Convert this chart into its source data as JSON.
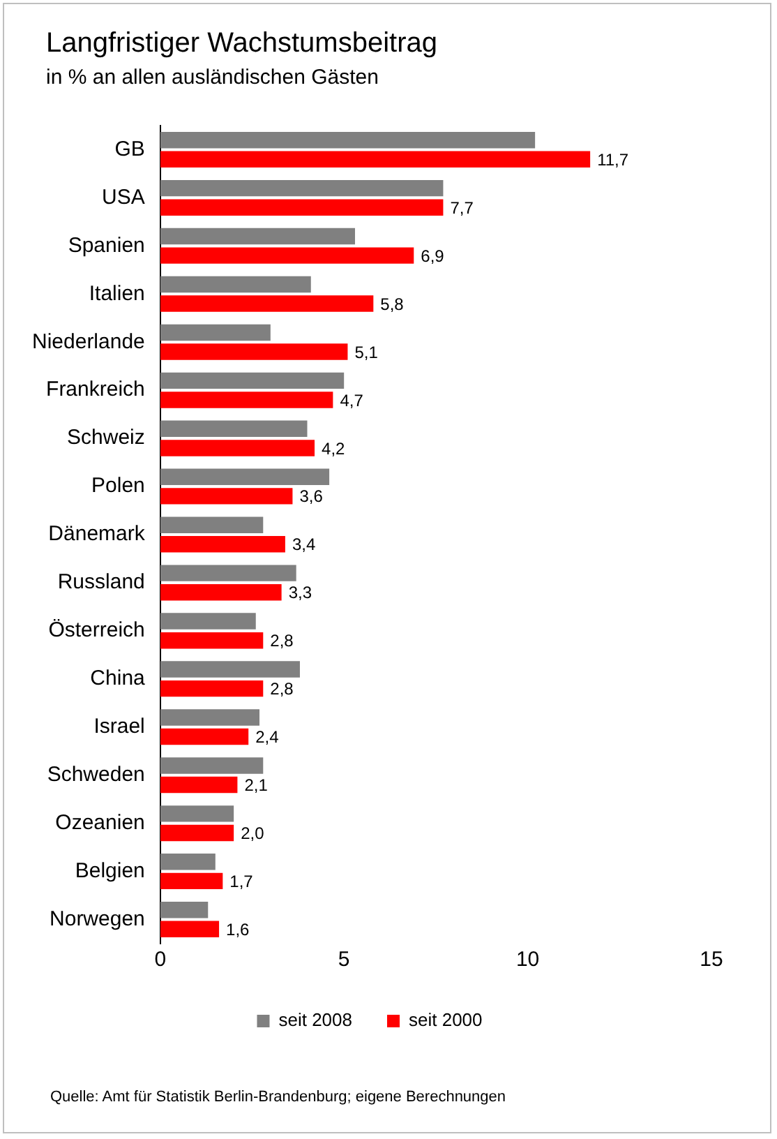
{
  "chart_data": {
    "type": "bar",
    "orientation": "horizontal",
    "title": "Langfristiger Wachstumsbeitrag",
    "subtitle": "in % an allen ausländischen Gästen",
    "categories": [
      "GB",
      "USA",
      "Spanien",
      "Italien",
      "Niederlande",
      "Frankreich",
      "Schweiz",
      "Polen",
      "Dänemark",
      "Russland",
      "Österreich",
      "China",
      "Israel",
      "Schweden",
      "Ozeanien",
      "Belgien",
      "Norwegen"
    ],
    "series": [
      {
        "name": "seit 2008",
        "color": "#808080",
        "values": [
          10.2,
          7.7,
          5.3,
          4.1,
          3.0,
          5.0,
          4.0,
          4.6,
          2.8,
          3.7,
          2.6,
          3.8,
          2.7,
          2.8,
          2.0,
          1.5,
          1.3
        ]
      },
      {
        "name": "seit 2000",
        "color": "#ff0000",
        "values": [
          11.7,
          7.7,
          6.9,
          5.8,
          5.1,
          4.7,
          4.2,
          3.6,
          3.4,
          3.3,
          2.8,
          2.8,
          2.4,
          2.1,
          2.0,
          1.7,
          1.6
        ],
        "value_labels": [
          "11,7",
          "7,7",
          "6,9",
          "5,8",
          "5,1",
          "4,7",
          "4,2",
          "3,6",
          "3,4",
          "3,3",
          "2,8",
          "2,8",
          "2,4",
          "2,1",
          "2,0",
          "1,7",
          "1,6"
        ]
      }
    ],
    "xlim": [
      0,
      15
    ],
    "xticks": [
      0,
      5,
      10,
      15
    ],
    "grid": false,
    "legend": "bottom",
    "annotations": [
      "Quelle:  Amt für Statistik  Berlin-Brandenburg;  eigene Berechnungen"
    ]
  }
}
